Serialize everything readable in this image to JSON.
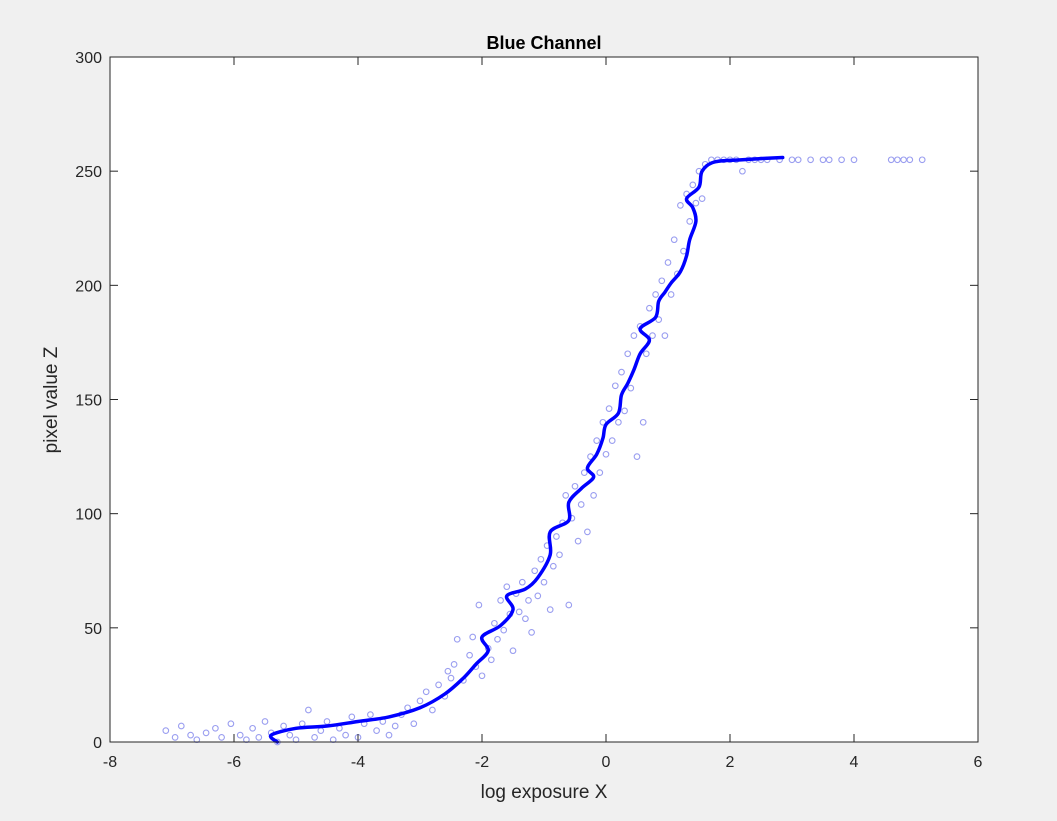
{
  "chart_data": {
    "type": "scatter",
    "title": "Blue Channel",
    "xlabel": "log exposure X",
    "ylabel": "pixel value Z",
    "xlim": [
      -8,
      6
    ],
    "ylim": [
      0,
      300
    ],
    "xticks": [
      -8,
      -6,
      -4,
      -2,
      0,
      2,
      4,
      6
    ],
    "yticks": [
      0,
      50,
      100,
      150,
      200,
      250,
      300
    ],
    "grid": false,
    "colors": {
      "scatter": "#9a9ef0",
      "curve": "#0000ff",
      "axes": "#262626",
      "plot_bg": "#ffffff",
      "figure_bg": "#f0f0f0"
    },
    "scatter_points": [
      [
        -7.1,
        5
      ],
      [
        -6.95,
        2
      ],
      [
        -6.85,
        7
      ],
      [
        -6.7,
        3
      ],
      [
        -6.6,
        1
      ],
      [
        -6.45,
        4
      ],
      [
        -6.3,
        6
      ],
      [
        -6.2,
        2
      ],
      [
        -6.05,
        8
      ],
      [
        -5.9,
        3
      ],
      [
        -5.8,
        1
      ],
      [
        -5.7,
        6
      ],
      [
        -5.6,
        2
      ],
      [
        -5.5,
        9
      ],
      [
        -5.4,
        4
      ],
      [
        -5.3,
        0
      ],
      [
        -5.2,
        7
      ],
      [
        -5.1,
        3
      ],
      [
        -5.0,
        1
      ],
      [
        -4.9,
        8
      ],
      [
        -4.8,
        14
      ],
      [
        -4.7,
        2
      ],
      [
        -4.6,
        5
      ],
      [
        -4.5,
        9
      ],
      [
        -4.4,
        1
      ],
      [
        -4.3,
        6
      ],
      [
        -4.2,
        3
      ],
      [
        -4.1,
        11
      ],
      [
        -4.0,
        2
      ],
      [
        -3.9,
        8
      ],
      [
        -3.8,
        12
      ],
      [
        -3.7,
        5
      ],
      [
        -3.6,
        9
      ],
      [
        -3.5,
        3
      ],
      [
        -3.4,
        7
      ],
      [
        -3.3,
        12
      ],
      [
        -3.2,
        15
      ],
      [
        -3.1,
        8
      ],
      [
        -3.0,
        18
      ],
      [
        -2.9,
        22
      ],
      [
        -2.8,
        14
      ],
      [
        -2.7,
        25
      ],
      [
        -2.6,
        20
      ],
      [
        -2.55,
        31
      ],
      [
        -2.5,
        28
      ],
      [
        -2.45,
        34
      ],
      [
        -2.4,
        45
      ],
      [
        -2.3,
        27
      ],
      [
        -2.2,
        38
      ],
      [
        -2.15,
        46
      ],
      [
        -2.1,
        33
      ],
      [
        -2.05,
        60
      ],
      [
        -2.0,
        29
      ],
      [
        -1.9,
        41
      ],
      [
        -1.85,
        36
      ],
      [
        -1.8,
        52
      ],
      [
        -1.75,
        45
      ],
      [
        -1.7,
        62
      ],
      [
        -1.65,
        49
      ],
      [
        -1.6,
        68
      ],
      [
        -1.55,
        56
      ],
      [
        -1.5,
        40
      ],
      [
        -1.45,
        65
      ],
      [
        -1.4,
        57
      ],
      [
        -1.35,
        70
      ],
      [
        -1.3,
        54
      ],
      [
        -1.25,
        62
      ],
      [
        -1.2,
        48
      ],
      [
        -1.15,
        75
      ],
      [
        -1.1,
        64
      ],
      [
        -1.05,
        80
      ],
      [
        -1.0,
        70
      ],
      [
        -0.95,
        86
      ],
      [
        -0.9,
        58
      ],
      [
        -0.85,
        77
      ],
      [
        -0.8,
        90
      ],
      [
        -0.75,
        82
      ],
      [
        -0.7,
        96
      ],
      [
        -0.65,
        108
      ],
      [
        -0.6,
        60
      ],
      [
        -0.55,
        98
      ],
      [
        -0.5,
        112
      ],
      [
        -0.45,
        88
      ],
      [
        -0.4,
        104
      ],
      [
        -0.35,
        118
      ],
      [
        -0.3,
        92
      ],
      [
        -0.25,
        125
      ],
      [
        -0.2,
        108
      ],
      [
        -0.15,
        132
      ],
      [
        -0.1,
        118
      ],
      [
        -0.05,
        140
      ],
      [
        0.0,
        126
      ],
      [
        0.05,
        146
      ],
      [
        0.1,
        132
      ],
      [
        0.15,
        156
      ],
      [
        0.2,
        140
      ],
      [
        0.25,
        162
      ],
      [
        0.3,
        145
      ],
      [
        0.35,
        170
      ],
      [
        0.4,
        155
      ],
      [
        0.45,
        178
      ],
      [
        0.5,
        125
      ],
      [
        0.55,
        182
      ],
      [
        0.6,
        140
      ],
      [
        0.65,
        170
      ],
      [
        0.7,
        190
      ],
      [
        0.75,
        178
      ],
      [
        0.8,
        196
      ],
      [
        0.85,
        185
      ],
      [
        0.9,
        202
      ],
      [
        0.95,
        178
      ],
      [
        1.0,
        210
      ],
      [
        1.05,
        196
      ],
      [
        1.1,
        220
      ],
      [
        1.15,
        205
      ],
      [
        1.2,
        235
      ],
      [
        1.25,
        215
      ],
      [
        1.3,
        240
      ],
      [
        1.35,
        228
      ],
      [
        1.4,
        244
      ],
      [
        1.45,
        236
      ],
      [
        1.5,
        250
      ],
      [
        1.55,
        238
      ],
      [
        1.6,
        253
      ],
      [
        1.7,
        255
      ],
      [
        1.8,
        255
      ],
      [
        1.9,
        255
      ],
      [
        2.0,
        255
      ],
      [
        2.1,
        255
      ],
      [
        2.2,
        250
      ],
      [
        2.3,
        255
      ],
      [
        2.4,
        255
      ],
      [
        2.5,
        255
      ],
      [
        2.6,
        255
      ],
      [
        2.8,
        255
      ],
      [
        3.0,
        255
      ],
      [
        3.1,
        255
      ],
      [
        3.3,
        255
      ],
      [
        3.5,
        255
      ],
      [
        3.6,
        255
      ],
      [
        3.8,
        255
      ],
      [
        4.0,
        255
      ],
      [
        4.6,
        255
      ],
      [
        4.7,
        255
      ],
      [
        4.8,
        255
      ],
      [
        4.9,
        255
      ],
      [
        5.1,
        255
      ]
    ],
    "curve_points": [
      [
        -5.3,
        0
      ],
      [
        -5.4,
        3
      ],
      [
        -5.0,
        6
      ],
      [
        -4.5,
        7
      ],
      [
        -4.0,
        9
      ],
      [
        -3.5,
        11
      ],
      [
        -3.0,
        15
      ],
      [
        -2.6,
        21
      ],
      [
        -2.3,
        28
      ],
      [
        -2.1,
        34
      ],
      [
        -1.9,
        40
      ],
      [
        -2.0,
        46
      ],
      [
        -1.7,
        51
      ],
      [
        -1.5,
        58
      ],
      [
        -1.6,
        64
      ],
      [
        -1.3,
        67
      ],
      [
        -1.1,
        72
      ],
      [
        -0.9,
        82
      ],
      [
        -0.9,
        92
      ],
      [
        -0.6,
        97
      ],
      [
        -0.6,
        105
      ],
      [
        -0.4,
        111
      ],
      [
        -0.2,
        116
      ],
      [
        -0.3,
        120
      ],
      [
        -0.15,
        126
      ],
      [
        -0.05,
        133
      ],
      [
        0.0,
        139
      ],
      [
        0.2,
        144
      ],
      [
        0.25,
        152
      ],
      [
        0.35,
        157
      ],
      [
        0.45,
        163
      ],
      [
        0.55,
        170
      ],
      [
        0.7,
        176
      ],
      [
        0.55,
        181
      ],
      [
        0.8,
        186
      ],
      [
        0.85,
        193
      ],
      [
        0.95,
        197
      ],
      [
        1.05,
        201
      ],
      [
        1.2,
        206
      ],
      [
        1.3,
        213
      ],
      [
        1.35,
        220
      ],
      [
        1.45,
        228
      ],
      [
        1.4,
        234
      ],
      [
        1.3,
        238
      ],
      [
        1.5,
        243
      ],
      [
        1.55,
        250
      ],
      [
        1.75,
        254
      ],
      [
        2.2,
        255
      ],
      [
        2.85,
        256
      ]
    ]
  }
}
